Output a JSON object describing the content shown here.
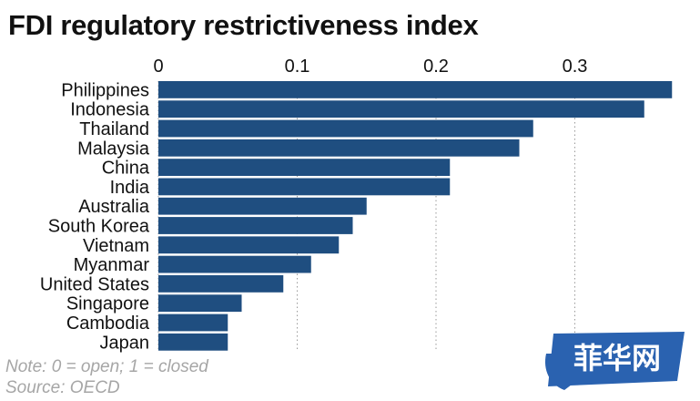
{
  "chart_data": {
    "type": "bar",
    "orientation": "horizontal",
    "title": "FDI regulatory restrictiveness index",
    "categories": [
      "Philippines",
      "Indonesia",
      "Thailand",
      "Malaysia",
      "China",
      "India",
      "Australia",
      "South Korea",
      "Vietnam",
      "Myanmar",
      "United States",
      "Singapore",
      "Cambodia",
      "Japan"
    ],
    "values": [
      0.37,
      0.35,
      0.27,
      0.26,
      0.21,
      0.21,
      0.15,
      0.14,
      0.13,
      0.11,
      0.09,
      0.06,
      0.05,
      0.05
    ],
    "xaxis": {
      "position": "top",
      "ticks": [
        0,
        0.1,
        0.2,
        0.3
      ],
      "tick_labels": [
        "0",
        "0.1",
        "0.2",
        "0.3"
      ],
      "range": [
        0,
        0.37
      ]
    },
    "grid": "vertical dotted",
    "bar_color": "#1f4e80",
    "note": "Note: 0 = open; 1 = closed",
    "source": "Source: OECD"
  },
  "watermark": {
    "text": "菲华网",
    "color": "#1c5aa8"
  }
}
